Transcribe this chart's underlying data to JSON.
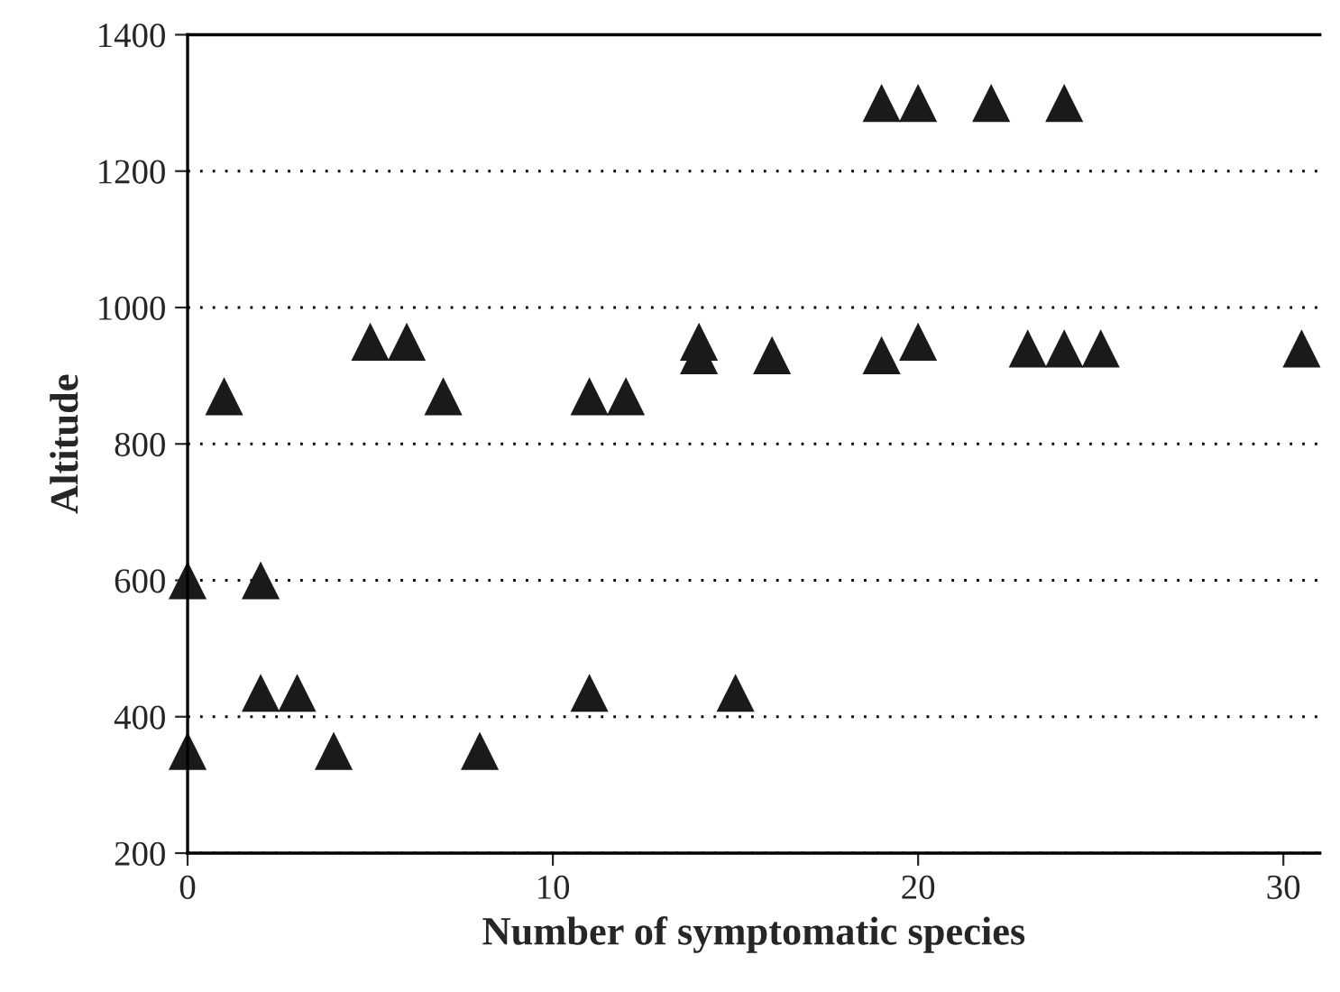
{
  "chart_data": {
    "type": "scatter",
    "xlabel": "Number of symptomatic species",
    "ylabel": "Altitude",
    "x": [
      0,
      0,
      1,
      2,
      2,
      3,
      4,
      5,
      6,
      7,
      8,
      11,
      11,
      12,
      14,
      14,
      15,
      16,
      19,
      19,
      20,
      20,
      22,
      23,
      24,
      24,
      25,
      30.5
    ],
    "series": [
      {
        "color": "#1a1a1a",
        "values": [
          600,
          350,
          870,
          600,
          435,
          435,
          350,
          950,
          950,
          870,
          350,
          870,
          435,
          870,
          950,
          930,
          435,
          930,
          1300,
          930,
          1300,
          950,
          1300,
          940,
          1300,
          940,
          940,
          940
        ]
      }
    ],
    "xlim": [
      0,
      31
    ],
    "xticks": [
      0,
      10,
      20,
      30
    ],
    "ylim": [
      200,
      1400
    ],
    "yticks": [
      200,
      400,
      600,
      800,
      1000,
      1200,
      1400
    ],
    "grid": "y",
    "marker": "triangle",
    "legend": false
  }
}
